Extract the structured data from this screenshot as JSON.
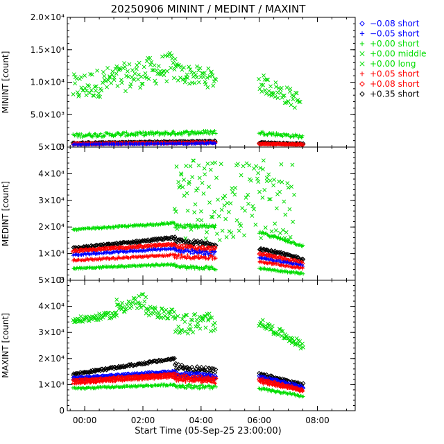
{
  "title": "20250906  MININT / MEDINT / MAXINT",
  "xlabel": "Start Time (05-Sep-25 23:00:00)",
  "x_ticks": [
    "00:00",
    "02:00",
    "04:00",
    "06:00",
    "08:00"
  ],
  "colors": {
    "black": "#000000",
    "blue": "#0000ff",
    "green": "#00dd00",
    "red": "#ff0000"
  },
  "legend": [
    {
      "marker": "diamond",
      "color": "#0000ff",
      "label": "−0.08 short"
    },
    {
      "marker": "plus",
      "color": "#0000ff",
      "label": "−0.05 short"
    },
    {
      "marker": "plus",
      "color": "#00dd00",
      "label": "+0.00 short"
    },
    {
      "marker": "cross",
      "color": "#00dd00",
      "label": "+0.00 middle"
    },
    {
      "marker": "cross",
      "color": "#00dd00",
      "label": "+0.00 long"
    },
    {
      "marker": "plus",
      "color": "#ff0000",
      "label": "+0.05 short"
    },
    {
      "marker": "diamond",
      "color": "#ff0000",
      "label": "+0.08 short"
    },
    {
      "marker": "diamond",
      "color": "#000000",
      "label": "+0.35 short"
    }
  ],
  "chart_data": [
    {
      "type": "scatter",
      "panel": "MININT",
      "ylabel": "MININT [count]",
      "xlim": [
        -0.6,
        9.3
      ],
      "ylim": [
        0,
        20000
      ],
      "y_ticks": [
        "0",
        "5.0×10³",
        "1.0×10⁴",
        "1.5×10⁴",
        "2.0×10⁴"
      ],
      "series": [
        {
          "label": "+0.00 middle/long",
          "color": "#00dd00",
          "marker": "cross",
          "segments": [
            [
              -0.4,
              3.1,
              9000,
              12500,
              2200
            ],
            [
              3.1,
              4.5,
              11500,
              10500,
              1500
            ],
            [
              6.0,
              7.4,
              10000,
              7000,
              1400
            ]
          ]
        },
        {
          "label": "+0.00 short",
          "color": "#00dd00",
          "marker": "plus",
          "segments": [
            [
              -0.4,
              4.5,
              1800,
              2300,
              300
            ],
            [
              6.0,
              7.5,
              2200,
              1600,
              250
            ]
          ]
        },
        {
          "label": "+0.35 short",
          "color": "#000000",
          "marker": "diamond",
          "segments": [
            [
              -0.4,
              4.5,
              600,
              900,
              100
            ],
            [
              6.0,
              7.5,
              700,
              500,
              80
            ]
          ]
        },
        {
          "label": "+0.08 short",
          "color": "#ff0000",
          "marker": "diamond",
          "segments": [
            [
              -0.4,
              4.5,
              500,
              700,
              80
            ],
            [
              6.0,
              7.5,
              500,
              400,
              60
            ]
          ]
        },
        {
          "label": "−0.05 short",
          "color": "#0000ff",
          "marker": "plus",
          "segments": [
            [
              -0.4,
              4.5,
              400,
              600,
              80
            ]
          ]
        }
      ]
    },
    {
      "type": "scatter",
      "panel": "MEDINT",
      "ylabel": "MEDINT [count]",
      "xlim": [
        -0.6,
        9.3
      ],
      "ylim": [
        0,
        50000
      ],
      "y_ticks": [
        "0",
        "1×10⁴",
        "2×10⁴",
        "3×10⁴",
        "4×10⁴",
        "5×10⁴"
      ],
      "series": [
        {
          "label": "+0.00 long",
          "color": "#00dd00",
          "marker": "plus",
          "segments": [
            [
              -0.4,
              3.1,
              19000,
              21500,
              300
            ],
            [
              3.1,
              4.5,
              20500,
              20000,
              600
            ],
            [
              6.0,
              7.5,
              18000,
              13000,
              500
            ]
          ]
        },
        {
          "label": "+0.35 short",
          "color": "#000000",
          "marker": "diamond",
          "segments": [
            [
              -0.4,
              3.1,
              12000,
              16000,
              400
            ],
            [
              3.1,
              4.5,
              14500,
              13500,
              1000
            ],
            [
              6.0,
              7.5,
              12000,
              8000,
              500
            ]
          ]
        },
        {
          "label": "+0.08 short",
          "color": "#ff0000",
          "marker": "diamond",
          "segments": [
            [
              -0.4,
              3.1,
              11000,
              13500,
              300
            ],
            [
              3.1,
              4.5,
              12500,
              11500,
              800
            ],
            [
              6.0,
              7.5,
              10000,
              6500,
              400
            ]
          ]
        },
        {
          "label": "−0.05 short",
          "color": "#0000ff",
          "marker": "plus",
          "segments": [
            [
              -0.4,
              3.1,
              9500,
              12000,
              300
            ],
            [
              3.1,
              4.5,
              11000,
              10000,
              800
            ],
            [
              6.0,
              7.5,
              8500,
              5500,
              400
            ]
          ]
        },
        {
          "label": "+0.05 short",
          "color": "#ff0000",
          "marker": "plus",
          "segments": [
            [
              -0.4,
              3.1,
              7500,
              9500,
              300
            ],
            [
              3.1,
              4.5,
              9000,
              8500,
              700
            ],
            [
              6.0,
              7.5,
              7000,
              4500,
              300
            ]
          ]
        },
        {
          "label": "+0.00 short",
          "color": "#00dd00",
          "marker": "plus",
          "segments": [
            [
              -0.4,
              3.1,
              4500,
              6000,
              300
            ],
            [
              3.1,
              4.5,
              5000,
              4500,
              600
            ],
            [
              6.0,
              7.5,
              4500,
              2500,
              300
            ]
          ]
        },
        {
          "label": "+0.00 middle",
          "color": "#00dd00",
          "marker": "cross",
          "segments": [
            [
              3.1,
              7.2,
              30000,
              30000,
              15000
            ]
          ]
        }
      ]
    },
    {
      "type": "scatter",
      "panel": "MAXINT",
      "ylabel": "MAXINT [count]",
      "xlim": [
        -0.6,
        9.3
      ],
      "ylim": [
        0,
        50000
      ],
      "y_ticks": [
        "0",
        "1×10⁴",
        "2×10⁴",
        "3×10⁴",
        "4×10⁴",
        "5×10⁴"
      ],
      "series": [
        {
          "label": "+0.00 middle/long",
          "color": "#00dd00",
          "marker": "cross",
          "segments": [
            [
              -0.4,
              1.1,
              34500,
              37000,
              1200
            ],
            [
              1.1,
              2.1,
              40000,
              42000,
              3000
            ],
            [
              2.1,
              3.1,
              38000,
              37000,
              2000
            ],
            [
              3.1,
              4.5,
              33000,
              34000,
              4000
            ],
            [
              6.0,
              7.5,
              34000,
              25000,
              1500
            ]
          ]
        },
        {
          "label": "+0.35 short",
          "color": "#000000",
          "marker": "diamond",
          "segments": [
            [
              -0.4,
              3.1,
              14000,
              20000,
              400
            ],
            [
              3.1,
              4.5,
              17000,
              15000,
              1200
            ],
            [
              6.0,
              7.5,
              14000,
              10000,
              500
            ]
          ]
        },
        {
          "label": "−0.08 short",
          "color": "#0000ff",
          "marker": "diamond",
          "segments": [
            [
              -0.4,
              3.1,
              12500,
              15000,
              300
            ],
            [
              3.1,
              4.5,
              14000,
              13000,
              900
            ],
            [
              6.0,
              7.5,
              13000,
              9000,
              400
            ]
          ]
        },
        {
          "label": "−0.05 short",
          "color": "#0000ff",
          "marker": "plus",
          "segments": [
            [
              -0.4,
              3.1,
              12000,
              14500,
              300
            ],
            [
              3.1,
              4.5,
              13500,
              12500,
              900
            ],
            [
              6.0,
              7.5,
              12500,
              8500,
              400
            ]
          ]
        },
        {
          "label": "+0.08 short",
          "color": "#ff0000",
          "marker": "diamond",
          "segments": [
            [
              -0.4,
              3.1,
              11500,
              14000,
              300
            ],
            [
              3.1,
              4.5,
              13000,
              12000,
              900
            ],
            [
              6.0,
              7.5,
              12000,
              8000,
              400
            ]
          ]
        },
        {
          "label": "+0.05 short",
          "color": "#ff0000",
          "marker": "plus",
          "segments": [
            [
              -0.4,
              3.1,
              10500,
              13000,
              300
            ],
            [
              3.1,
              4.5,
              12000,
              11000,
              800
            ],
            [
              6.0,
              7.5,
              11000,
              7500,
              400
            ]
          ]
        },
        {
          "label": "+0.00 short",
          "color": "#00dd00",
          "marker": "plus",
          "segments": [
            [
              -0.4,
              3.1,
              8500,
              10000,
              300
            ],
            [
              3.1,
              4.5,
              9500,
              9000,
              700
            ],
            [
              6.0,
              7.5,
              8500,
              5500,
              400
            ]
          ]
        }
      ]
    }
  ]
}
